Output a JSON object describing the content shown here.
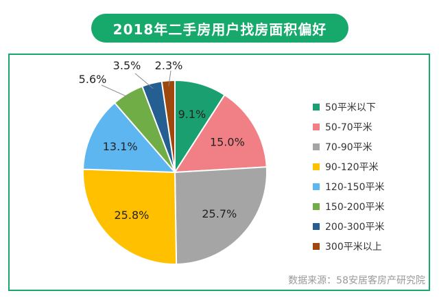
{
  "title": "2018年二手房用户找房面积偏好",
  "source": "数据来源：58安居客房产研究院",
  "chart_data": {
    "type": "pie",
    "title": "2018年二手房用户找房面积偏好",
    "legend_position": "right",
    "start_angle": "12-o'clock",
    "direction": "clockwise",
    "slices": [
      {
        "name": "50平米以下",
        "value": 9.1,
        "label": "9.1%",
        "color": "#1aa070"
      },
      {
        "name": "50-70平米",
        "value": 15.0,
        "label": "15.0%",
        "color": "#f08086"
      },
      {
        "name": "70-90平米",
        "value": 25.7,
        "label": "25.7%",
        "color": "#a5a5a5"
      },
      {
        "name": "90-120平米",
        "value": 25.8,
        "label": "25.8%",
        "color": "#ffc000"
      },
      {
        "name": "120-150平米",
        "value": 13.1,
        "label": "13.1%",
        "color": "#5db6f0"
      },
      {
        "name": "150-200平米",
        "value": 5.6,
        "label": "5.6%",
        "color": "#70ad47"
      },
      {
        "name": "200-300平米",
        "value": 3.5,
        "label": "3.5%",
        "color": "#255e91"
      },
      {
        "name": "300平米以上",
        "value": 2.3,
        "label": "2.3%",
        "color": "#9e480e"
      }
    ]
  }
}
